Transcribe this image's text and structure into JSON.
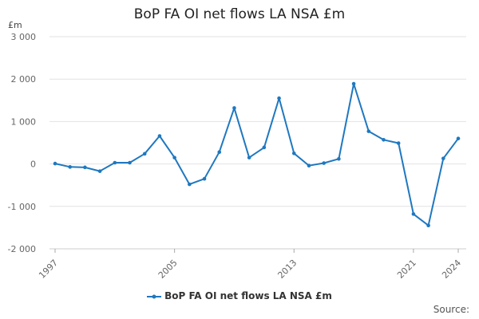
{
  "chart_data": {
    "type": "line",
    "title": "BoP FA OI net flows LA NSA £m",
    "ylabel": "£m",
    "xlabel": "",
    "ylim": [
      -2000,
      3000
    ],
    "xlim": [
      1997,
      2024
    ],
    "y_ticks": [
      -2000,
      -1000,
      0,
      1000,
      2000,
      3000
    ],
    "y_tick_labels": [
      "-2 000",
      "-1 000",
      "0",
      "1 000",
      "2 000",
      "3 000"
    ],
    "x_tick_labels": [
      "1997",
      "2005",
      "2013",
      "2021",
      "2024"
    ],
    "x_ticks": [
      1997,
      2005,
      2013,
      2021,
      2024
    ],
    "grid": "horizontal",
    "legend_position": "bottom",
    "series": [
      {
        "name": "BoP FA OI net flows LA NSA £m",
        "color": "#1f78c0",
        "x": [
          1997,
          1998,
          1999,
          2000,
          2001,
          2002,
          2003,
          2004,
          2005,
          2006,
          2007,
          2008,
          2009,
          2010,
          2011,
          2012,
          2013,
          2014,
          2015,
          2016,
          2017,
          2018,
          2019,
          2020,
          2021,
          2022,
          2023,
          2024
        ],
        "values": [
          10,
          -70,
          -80,
          -170,
          30,
          30,
          240,
          660,
          150,
          -480,
          -350,
          280,
          1320,
          150,
          390,
          1550,
          250,
          -40,
          20,
          120,
          1890,
          770,
          570,
          490,
          -1180,
          -1450,
          130,
          600
        ]
      }
    ]
  },
  "source_label": "Source:"
}
